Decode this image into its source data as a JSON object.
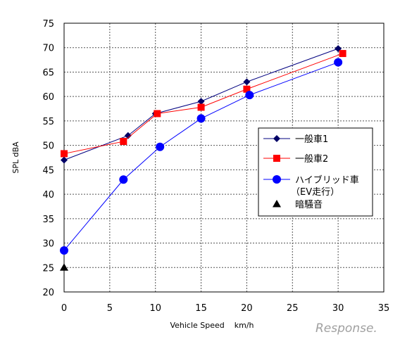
{
  "chart_data": {
    "type": "line",
    "xlabel": "Vehicle Speed    km/h",
    "ylabel": "SPL   dBA",
    "xlim": [
      0,
      35
    ],
    "ylim": [
      20,
      75
    ],
    "xticks": [
      0,
      5,
      10,
      15,
      20,
      25,
      30,
      35
    ],
    "yticks": [
      20,
      25,
      30,
      35,
      40,
      45,
      50,
      55,
      60,
      65,
      70,
      75
    ],
    "grid": true,
    "legend_position": "right",
    "series": [
      {
        "name": "一般車1",
        "marker": "diamond",
        "color": "#000080",
        "marker_color": "#000066",
        "points": [
          [
            0,
            47
          ],
          [
            7,
            52
          ],
          [
            10,
            56.5
          ],
          [
            15,
            59
          ],
          [
            20,
            63
          ],
          [
            30,
            69.8
          ]
        ]
      },
      {
        "name": "一般車2",
        "marker": "square",
        "color": "#ff0000",
        "marker_color": "#ff0000",
        "points": [
          [
            0,
            48.3
          ],
          [
            6.5,
            50.8
          ],
          [
            10.2,
            56.5
          ],
          [
            15,
            57.8
          ],
          [
            20,
            61.5
          ],
          [
            30.5,
            68.8
          ]
        ]
      },
      {
        "name": "ハイブリッド車",
        "name_line2": "（EV走行）",
        "marker": "circle",
        "color": "#0000ff",
        "marker_color": "#0000ff",
        "points": [
          [
            0,
            28.5
          ],
          [
            6.5,
            43
          ],
          [
            10.5,
            49.7
          ],
          [
            15,
            55.5
          ],
          [
            20.3,
            60.3
          ],
          [
            30,
            67
          ]
        ]
      },
      {
        "name": "暗騒音",
        "marker": "triangle",
        "color": "#000000",
        "marker_color": "#000000",
        "points": [
          [
            0,
            25
          ]
        ]
      }
    ]
  },
  "watermark": "Response."
}
